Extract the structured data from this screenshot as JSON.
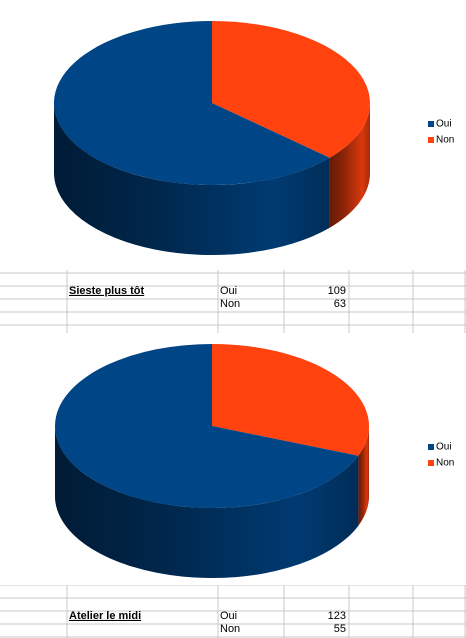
{
  "chart_data": [
    {
      "type": "pie",
      "name": "Sieste plus tôt",
      "categories": [
        "Oui",
        "Non"
      ],
      "values": [
        109,
        63
      ],
      "colors": [
        "#004586",
        "#ff420e"
      ],
      "legend": "right"
    },
    {
      "type": "pie",
      "name": "Atelier le midi",
      "categories": [
        "Oui",
        "Non"
      ],
      "values": [
        123,
        55
      ],
      "colors": [
        "#004586",
        "#ff420e"
      ],
      "legend": "right"
    }
  ]
}
